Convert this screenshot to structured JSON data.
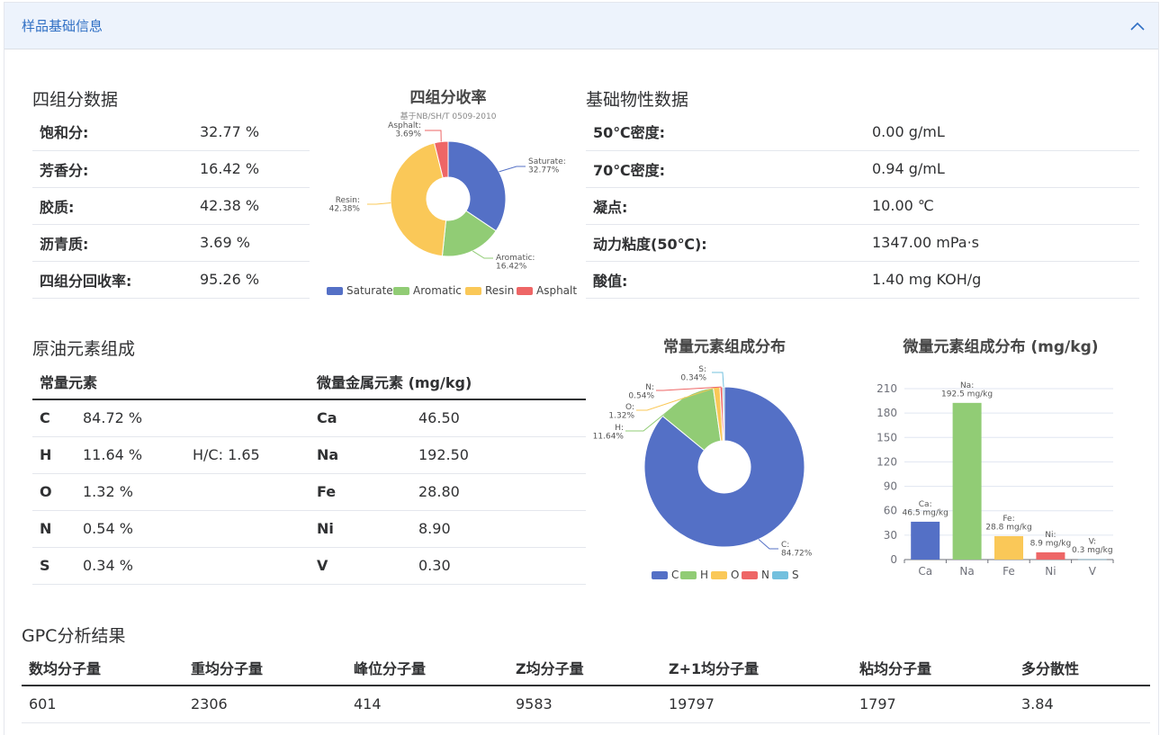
{
  "panel": {
    "title": "样品基础信息"
  },
  "four_component": {
    "title": "四组分数据",
    "rows": [
      {
        "label": "饱和分:",
        "value": "32.77 %"
      },
      {
        "label": "芳香分:",
        "value": "16.42 %"
      },
      {
        "label": "胶质:",
        "value": "42.38 %"
      },
      {
        "label": "沥青质:",
        "value": "3.69 %"
      },
      {
        "label": "四组分回收率:",
        "value": "95.26 %"
      }
    ]
  },
  "physical": {
    "title": "基础物性数据",
    "rows": [
      {
        "label": "50℃密度:",
        "value": "0.00 g/mL"
      },
      {
        "label": "70℃密度:",
        "value": "0.94 g/mL"
      },
      {
        "label": "凝点:",
        "value": "10.00 ℃"
      },
      {
        "label": "动力粘度(50℃):",
        "value": "1347.00 mPa·s"
      },
      {
        "label": "酸值:",
        "value": "1.40 mg KOH/g"
      }
    ]
  },
  "elements": {
    "title": "原油元素组成",
    "major_header": "常量元素",
    "trace_header": "微量金属元素 (mg/kg)",
    "rows": [
      {
        "el": "C",
        "pct": "84.72 %",
        "ratio": "",
        "trace": "Ca",
        "trace_val": "46.50"
      },
      {
        "el": "H",
        "pct": "11.64 %",
        "ratio": "H/C: 1.65",
        "trace": "Na",
        "trace_val": "192.50"
      },
      {
        "el": "O",
        "pct": "1.32 %",
        "ratio": "",
        "trace": "Fe",
        "trace_val": "28.80"
      },
      {
        "el": "N",
        "pct": "0.54 %",
        "ratio": "",
        "trace": "Ni",
        "trace_val": "8.90"
      },
      {
        "el": "S",
        "pct": "0.34 %",
        "ratio": "",
        "trace": "V",
        "trace_val": "0.30"
      }
    ]
  },
  "gpc": {
    "title": "GPC分析结果",
    "headers": [
      "数均分子量",
      "重均分子量",
      "峰位分子量",
      "Z均分子量",
      "Z+1均分子量",
      "粘均分子量",
      "多分散性"
    ],
    "values": [
      "601",
      "2306",
      "414",
      "9583",
      "19797",
      "1797",
      "3.84"
    ]
  },
  "colors": {
    "blue": "#5470c6",
    "green": "#91cc75",
    "yellow": "#fac858",
    "red": "#ee6666",
    "cyan": "#73c0de",
    "accent": "#2f6fc4"
  },
  "chart_data": [
    {
      "id": "four_component_pie",
      "type": "pie",
      "title": "四组分收率",
      "subtitle": "基于NB/SH/T 0509-2010",
      "categories": [
        "Saturate",
        "Aromatic",
        "Resin",
        "Asphalt"
      ],
      "values": [
        32.77,
        16.42,
        42.38,
        3.69
      ],
      "slice_labels": [
        "Saturate:\n32.77%",
        "Aromatic:\n16.42%",
        "Resin:\n42.38%",
        "Asphalt:\n3.69%"
      ],
      "colors": [
        "#5470c6",
        "#91cc75",
        "#fac858",
        "#ee6666"
      ],
      "legend": "bottom"
    },
    {
      "id": "major_element_pie",
      "type": "pie",
      "title": "常量元素组成分布",
      "categories": [
        "C",
        "H",
        "O",
        "N",
        "S"
      ],
      "values": [
        84.72,
        11.64,
        1.32,
        0.54,
        0.34
      ],
      "slice_labels": [
        "C:\n84.72%",
        "H:\n11.64%",
        "O:\n1.32%",
        "N:\n0.54%",
        "S:\n0.34%"
      ],
      "colors": [
        "#5470c6",
        "#91cc75",
        "#fac858",
        "#ee6666",
        "#73c0de"
      ],
      "legend": "bottom"
    },
    {
      "id": "trace_element_bar",
      "type": "bar",
      "title": "微量元素组成分布 (mg/kg)",
      "categories": [
        "Ca",
        "Na",
        "Fe",
        "Ni",
        "V"
      ],
      "values": [
        46.5,
        192.5,
        28.8,
        8.9,
        0.3
      ],
      "bar_labels": [
        "Ca:\n46.5 mg/kg",
        "Na:\n192.5 mg/kg",
        "Fe:\n28.8 mg/kg",
        "Ni:\n8.9 mg/kg",
        "V:\n0.3 mg/kg"
      ],
      "colors": [
        "#5470c6",
        "#91cc75",
        "#fac858",
        "#ee6666",
        "#73c0de"
      ],
      "ylim": [
        0,
        210
      ],
      "yticks": [
        "0",
        "30",
        "60",
        "90",
        "120",
        "150",
        "180",
        "210"
      ],
      "grid": true
    }
  ]
}
